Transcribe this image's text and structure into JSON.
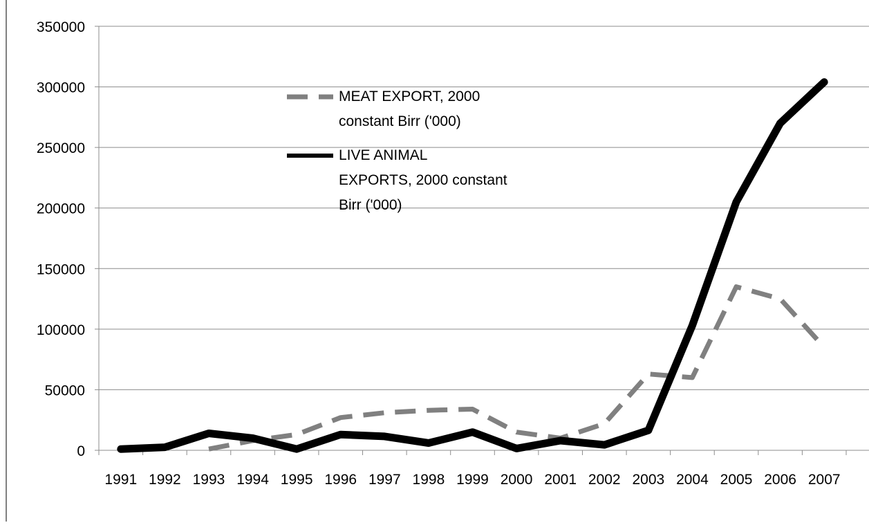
{
  "chart_data": {
    "type": "line",
    "title": "",
    "xlabel": "",
    "ylabel": "",
    "ylim": [
      0,
      350000
    ],
    "yticks": [
      0,
      50000,
      100000,
      150000,
      200000,
      250000,
      300000,
      350000
    ],
    "ytick_labels": [
      "0",
      "50000",
      "100000",
      "150000",
      "200000",
      "250000",
      "300000",
      "350000"
    ],
    "categories": [
      "1991",
      "1992",
      "1993",
      "1994",
      "1995",
      "1996",
      "1997",
      "1998",
      "1999",
      "2000",
      "2001",
      "2002",
      "2003",
      "2004",
      "2005",
      "2006",
      "2007"
    ],
    "grid": "horizontal",
    "legend_position": "top-center",
    "series": [
      {
        "name_lines": [
          "MEAT EXPORT, 2000",
          "constant Birr ('000)"
        ],
        "style": "dashed",
        "color": "#808080",
        "values": [
          null,
          null,
          1000,
          8000,
          13000,
          27000,
          31000,
          33000,
          34000,
          15000,
          10000,
          22000,
          63000,
          60000,
          135000,
          125000,
          85000
        ]
      },
      {
        "name_lines": [
          "LIVE ANIMAL",
          "EXPORTS, 2000 constant",
          "Birr ('000)"
        ],
        "style": "solid",
        "color": "#000000",
        "values": [
          1000,
          2500,
          14000,
          10000,
          1000,
          13000,
          11500,
          6000,
          15000,
          1500,
          8000,
          4500,
          16500,
          103000,
          205000,
          270000,
          304000
        ]
      }
    ]
  }
}
